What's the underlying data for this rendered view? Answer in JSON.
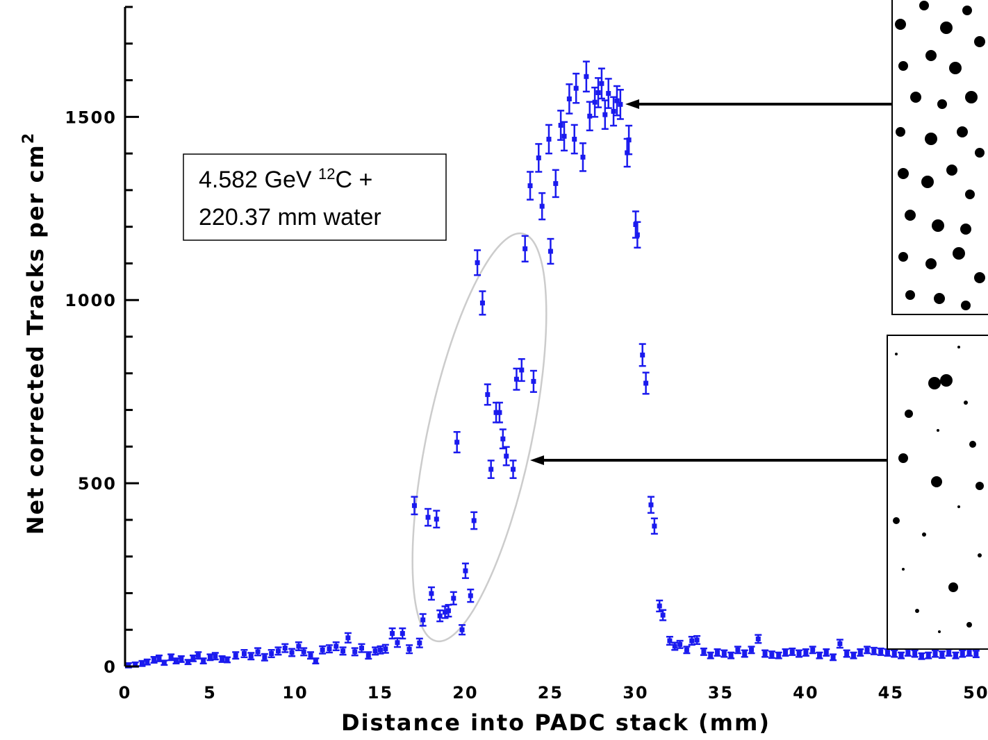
{
  "chart_data": {
    "type": "scatter",
    "xlabel": "Distance into PADC stack  (mm)",
    "ylabel": {
      "text": "Net corrected Tracks per cm",
      "superscript": "2"
    },
    "annotation": {
      "prefix": "4.582 GeV ",
      "superscript": "12",
      "suffix": "C +",
      "line2": "220.37 mm water"
    },
    "xlim": [
      0,
      50.7
    ],
    "ylim": [
      0,
      1800
    ],
    "xticks": [
      0,
      5,
      10,
      15,
      20,
      25,
      30,
      35,
      40,
      45,
      50
    ],
    "yticks": [
      0,
      500,
      1000,
      1500
    ],
    "yminorticks": [
      100,
      200,
      300,
      400,
      600,
      700,
      800,
      900,
      1100,
      1200,
      1300,
      1400,
      1600,
      1700,
      1800
    ],
    "series": [
      {
        "color": "#1a1aee",
        "x": [
          0.2,
          0.6,
          1.0,
          1.3,
          1.7,
          2.0,
          2.3,
          2.7,
          3.0,
          3.3,
          3.7,
          4.0,
          4.3,
          4.6,
          5.0,
          5.3,
          5.7,
          6.0,
          6.5,
          7.0,
          7.4,
          7.8,
          8.2,
          8.6,
          9.0,
          9.4,
          9.8,
          10.2,
          10.5,
          10.9,
          11.2,
          11.6,
          12.0,
          12.4,
          12.8,
          13.1,
          13.5,
          13.9,
          14.3,
          14.7,
          15.0,
          15.3,
          15.7,
          16.0,
          16.3,
          16.7,
          17.0,
          17.3,
          17.5,
          17.8,
          18.0,
          18.3,
          18.5,
          18.8,
          19.0,
          19.3,
          19.5,
          19.8,
          20.0,
          20.3,
          20.5,
          20.7,
          21.0,
          21.3,
          21.5,
          21.8,
          22.0,
          22.2,
          22.4,
          22.8,
          23.0,
          23.3,
          23.5,
          23.8,
          24.0,
          24.3,
          24.5,
          24.9,
          25.0,
          25.3,
          25.6,
          25.8,
          26.1,
          26.4,
          26.5,
          26.9,
          27.1,
          27.3,
          27.6,
          27.8,
          28.0,
          28.2,
          28.4,
          28.7,
          28.9,
          29.1,
          29.5,
          29.6,
          30.0,
          30.1,
          30.4,
          30.6,
          30.9,
          31.1,
          31.4,
          31.6,
          32.0,
          32.3,
          32.6,
          33.0,
          33.3,
          33.6,
          34.0,
          34.4,
          34.8,
          35.2,
          35.6,
          36.0,
          36.4,
          36.8,
          37.2,
          37.6,
          38.0,
          38.4,
          38.8,
          39.2,
          39.6,
          40.0,
          40.4,
          40.8,
          41.2,
          41.6,
          42.0,
          42.4,
          42.8,
          43.2,
          43.6,
          44.0,
          44.4,
          44.8,
          45.2,
          45.6,
          46.0,
          46.4,
          46.8,
          47.2,
          47.6,
          48.0,
          48.4,
          48.8,
          49.2,
          49.6,
          50.0
        ],
        "values": [
          3,
          5,
          8,
          12,
          18,
          22,
          10,
          25,
          15,
          20,
          12,
          22,
          30,
          15,
          25,
          28,
          20,
          18,
          30,
          35,
          28,
          40,
          25,
          35,
          42,
          50,
          38,
          55,
          40,
          30,
          15,
          45,
          48,
          55,
          42,
          78,
          40,
          50,
          30,
          42,
          45,
          48,
          90,
          65,
          90,
          47,
          439,
          64,
          127,
          407,
          199,
          402,
          138,
          148,
          152,
          186,
          612,
          100,
          261,
          193,
          398,
          1102,
          992,
          742,
          538,
          693,
          693,
          621,
          574,
          538,
          784,
          809,
          1140,
          1312,
          778,
          1388,
          1256,
          1439,
          1133,
          1318,
          1477,
          1447,
          1549,
          1439,
          1578,
          1390,
          1610,
          1502,
          1540,
          1566,
          1591,
          1506,
          1564,
          1515,
          1544,
          1534,
          1402,
          1437,
          1206,
          1178,
          850,
          773,
          441,
          383,
          165,
          140,
          70,
          55,
          60,
          45,
          70,
          72,
          40,
          30,
          38,
          35,
          30,
          45,
          35,
          45,
          75,
          35,
          32,
          30,
          38,
          40,
          35,
          38,
          45,
          30,
          38,
          25,
          62,
          35,
          30,
          38,
          45,
          42,
          40,
          38,
          35,
          30,
          38,
          35,
          28,
          30,
          35,
          32,
          38,
          30,
          35,
          38,
          34
        ],
        "errors": [
          6,
          6,
          7,
          7,
          8,
          8,
          6,
          8,
          7,
          8,
          6,
          8,
          9,
          7,
          8,
          9,
          8,
          7,
          9,
          10,
          9,
          10,
          9,
          10,
          10,
          11,
          10,
          11,
          10,
          9,
          7,
          10,
          10,
          11,
          10,
          13,
          10,
          11,
          9,
          10,
          10,
          11,
          14,
          12,
          14,
          11,
          24,
          12,
          16,
          23,
          17,
          23,
          15,
          16,
          16,
          17,
          28,
          13,
          20,
          17,
          23,
          34,
          32,
          28,
          24,
          27,
          27,
          26,
          25,
          24,
          29,
          30,
          35,
          38,
          29,
          38,
          36,
          39,
          34,
          37,
          40,
          39,
          40,
          39,
          40,
          38,
          41,
          39,
          40,
          40,
          41,
          39,
          40,
          39,
          40,
          40,
          38,
          39,
          36,
          35,
          30,
          29,
          22,
          21,
          15,
          14,
          11,
          10,
          10,
          9,
          11,
          11,
          9,
          8,
          9,
          9,
          8,
          9,
          9,
          9,
          11,
          9,
          9,
          8,
          9,
          9,
          9,
          9,
          9,
          8,
          9,
          8,
          11,
          9,
          8,
          9,
          9,
          9,
          9,
          9,
          9,
          8,
          9,
          9,
          8,
          8,
          9,
          9,
          9,
          8,
          9,
          9,
          9
        ]
      }
    ]
  }
}
